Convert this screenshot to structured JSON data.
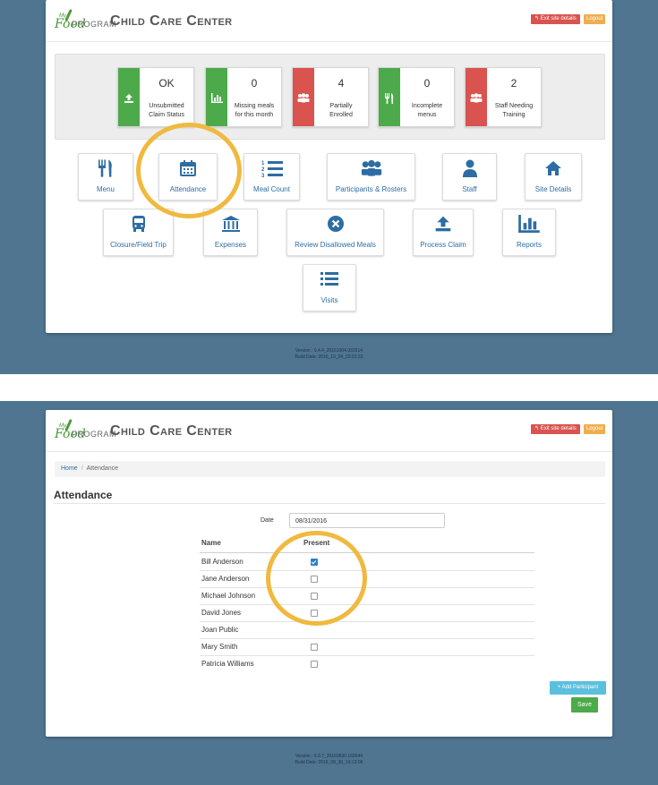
{
  "colors": {
    "background": "#4f7591",
    "success": "#4caa4a",
    "danger": "#d9534f",
    "warning": "#f0ad4e",
    "info": "#5bc0de",
    "link": "#2d6da3",
    "highlight": "#f0b93f"
  },
  "header": {
    "logo_my": "My",
    "logo_food": "Food",
    "logo_program": "PROGRAM",
    "title": "Child Care Center",
    "exit_label": "↰ Exit site details",
    "logout_label": "Logout"
  },
  "dashboard": {
    "stats": [
      {
        "value": "OK",
        "label1": "Unsubmitted",
        "label2": "Claim Status",
        "icon": "upload-icon",
        "color": "green"
      },
      {
        "value": "0",
        "label1": "Missing meals",
        "label2": "for this month",
        "icon": "bar-chart-icon",
        "color": "green"
      },
      {
        "value": "4",
        "label1": "Partially",
        "label2": "Enrolled",
        "icon": "group-icon",
        "color": "red"
      },
      {
        "value": "0",
        "label1": "Incomplete",
        "label2": "menus",
        "icon": "cutlery-icon",
        "color": "green"
      },
      {
        "value": "2",
        "label1": "Staff Needing",
        "label2": "Training",
        "icon": "group-icon",
        "color": "red"
      }
    ],
    "tiles": [
      {
        "label": "Menu",
        "icon": "cutlery-icon"
      },
      {
        "label": "Attendance",
        "icon": "calendar-icon"
      },
      {
        "label": "Meal Count",
        "icon": "numbered-list-icon"
      },
      {
        "label": "Participants & Rosters",
        "icon": "group-icon"
      },
      {
        "label": "Staff",
        "icon": "user-icon"
      },
      {
        "label": "Site Details",
        "icon": "home-icon"
      },
      {
        "label": "Closure/Field Trip",
        "icon": "bus-icon"
      },
      {
        "label": "Expenses",
        "icon": "bank-icon"
      },
      {
        "label": "Review Disallowed Meals",
        "icon": "x-circle-icon"
      },
      {
        "label": "Process Claim",
        "icon": "upload-icon"
      },
      {
        "label": "Reports",
        "icon": "bar-chart-icon"
      },
      {
        "label": "Visits",
        "icon": "list-icon"
      }
    ],
    "version": "Version : 0.4.4_20161004.031514",
    "build_date": "Build Date: 2016_10_04_03:22:23"
  },
  "attendance": {
    "breadcrumb_home": "Home",
    "breadcrumb_sep": "/",
    "breadcrumb_current": "Attendance",
    "title": "Attendance",
    "date_label": "Date",
    "date_value": "08/31/2016",
    "col_name": "Name",
    "col_present": "Present",
    "rows": [
      {
        "name": "Bill Anderson",
        "present": true,
        "has_checkbox": true
      },
      {
        "name": "Jane Anderson",
        "present": false,
        "has_checkbox": true
      },
      {
        "name": "Michael Johnson",
        "present": false,
        "has_checkbox": true
      },
      {
        "name": "David Jones",
        "present": false,
        "has_checkbox": true
      },
      {
        "name": "Joan Public",
        "present": false,
        "has_checkbox": false
      },
      {
        "name": "Mary Smith",
        "present": false,
        "has_checkbox": true
      },
      {
        "name": "Patricia Williams",
        "present": false,
        "has_checkbox": true
      }
    ],
    "add_participant_label": "+ Add Participant",
    "save_label": "Save",
    "version": "Version : 0.3.7_20160830.160644",
    "build_date": "Build Date: 2016_08_30_16:13:06"
  }
}
